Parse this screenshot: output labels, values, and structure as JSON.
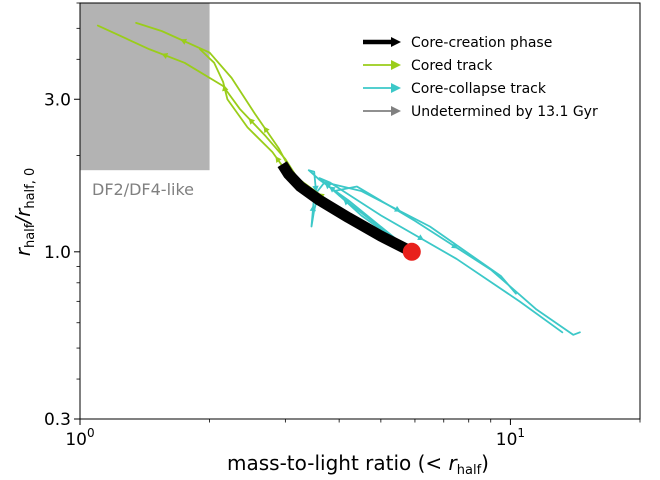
{
  "chart_data": {
    "type": "line",
    "xlabel_main": "mass-to-light ratio (",
    "xlabel_sym": "< r",
    "xlabel_sub": "half",
    "xlabel_end": ")",
    "ylabel_main": "r",
    "ylabel_sub1": "half",
    "ylabel_mid": "/r",
    "ylabel_sub2": "half, 0",
    "x_scale": "log",
    "y_scale": "log",
    "xlim": [
      1.0,
      20.0
    ],
    "ylim": [
      0.3,
      6.0
    ],
    "x_tick_labels": [
      {
        "value": 1.0,
        "base": "10",
        "exp": "0"
      },
      {
        "value": 10.0,
        "base": "10",
        "exp": "1"
      }
    ],
    "y_tick_labels": [
      {
        "value": 0.3,
        "label": "0.3"
      },
      {
        "value": 1.0,
        "label": "1.0"
      },
      {
        "value": 3.0,
        "label": "3.0"
      }
    ],
    "legend_position": "top-right",
    "legend": [
      {
        "label": "Core-creation phase",
        "color": "#000000"
      },
      {
        "label": "Cored track",
        "color": "#9acd1a"
      },
      {
        "label": "Core-collapse track",
        "color": "#3cc8c8"
      },
      {
        "label": "Undetermined by 13.1 Gyr",
        "color": "#808080"
      }
    ],
    "shaded_region": {
      "label": "DF2/DF4-like",
      "x": [
        1.0,
        2.0
      ],
      "y": [
        1.8,
        6.0
      ],
      "color": "#b3b3b3"
    },
    "start_marker": {
      "x": 5.9,
      "y": 1.0,
      "color": "#e8201c"
    },
    "series": [
      {
        "kind": "core-collapse",
        "color": "#3cc8c8",
        "points": [
          [
            5.9,
            1.0
          ],
          [
            4.2,
            1.45
          ],
          [
            3.6,
            1.68
          ],
          [
            3.4,
            1.8
          ],
          [
            3.5,
            1.78
          ],
          [
            3.55,
            1.45
          ],
          [
            3.5,
            1.35
          ],
          [
            3.45,
            1.2
          ],
          [
            3.5,
            1.5
          ],
          [
            3.7,
            1.65
          ],
          [
            4.5,
            1.55
          ],
          [
            6.5,
            1.2
          ],
          [
            9.5,
            0.84
          ],
          [
            10.3,
            0.74
          ]
        ]
      },
      {
        "kind": "core-collapse",
        "color": "#3cc8c8",
        "points": [
          [
            5.9,
            1.0
          ],
          [
            4.5,
            1.3
          ],
          [
            3.9,
            1.55
          ],
          [
            4.4,
            1.6
          ],
          [
            6.0,
            1.25
          ],
          [
            9.0,
            0.88
          ],
          [
            11.5,
            0.66
          ],
          [
            14.0,
            0.55
          ],
          [
            14.5,
            0.56
          ]
        ]
      },
      {
        "kind": "core-collapse",
        "color": "#3cc8c8",
        "points": [
          [
            5.9,
            1.0
          ],
          [
            4.0,
            1.5
          ],
          [
            3.6,
            1.7
          ],
          [
            3.8,
            1.65
          ],
          [
            5.0,
            1.3
          ],
          [
            7.5,
            0.95
          ],
          [
            10.5,
            0.7
          ],
          [
            13.2,
            0.56
          ]
        ]
      },
      {
        "kind": "cored",
        "color": "#9acd1a",
        "points": [
          [
            5.9,
            1.0
          ],
          [
            4.5,
            1.2
          ],
          [
            3.3,
            1.55
          ],
          [
            3.05,
            1.85
          ],
          [
            2.9,
            2.1
          ],
          [
            2.55,
            2.7
          ],
          [
            2.25,
            3.5
          ],
          [
            2.0,
            4.2
          ],
          [
            1.55,
            4.9
          ],
          [
            1.35,
            5.2
          ]
        ]
      },
      {
        "kind": "cored",
        "color": "#9acd1a",
        "points": [
          [
            5.9,
            1.0
          ],
          [
            4.2,
            1.3
          ],
          [
            3.2,
            1.7
          ],
          [
            3.0,
            1.95
          ],
          [
            2.7,
            2.3
          ],
          [
            2.35,
            2.8
          ],
          [
            2.15,
            3.3
          ],
          [
            1.75,
            3.9
          ],
          [
            1.45,
            4.3
          ],
          [
            1.1,
            5.1
          ]
        ]
      },
      {
        "kind": "cored",
        "color": "#9acd1a",
        "points": [
          [
            5.9,
            1.0
          ],
          [
            4.8,
            1.15
          ],
          [
            3.6,
            1.45
          ],
          [
            3.1,
            1.7
          ],
          [
            3.0,
            1.8
          ],
          [
            2.8,
            2.05
          ],
          [
            2.45,
            2.45
          ],
          [
            2.2,
            3.0
          ],
          [
            2.15,
            3.4
          ],
          [
            2.05,
            3.9
          ],
          [
            1.9,
            4.3
          ]
        ]
      },
      {
        "kind": "core-creation",
        "color": "#000000",
        "points": [
          [
            5.9,
            1.0
          ],
          [
            5.0,
            1.12
          ],
          [
            4.2,
            1.28
          ],
          [
            3.6,
            1.45
          ],
          [
            3.25,
            1.6
          ],
          [
            3.05,
            1.75
          ],
          [
            2.95,
            1.88
          ]
        ]
      }
    ]
  }
}
